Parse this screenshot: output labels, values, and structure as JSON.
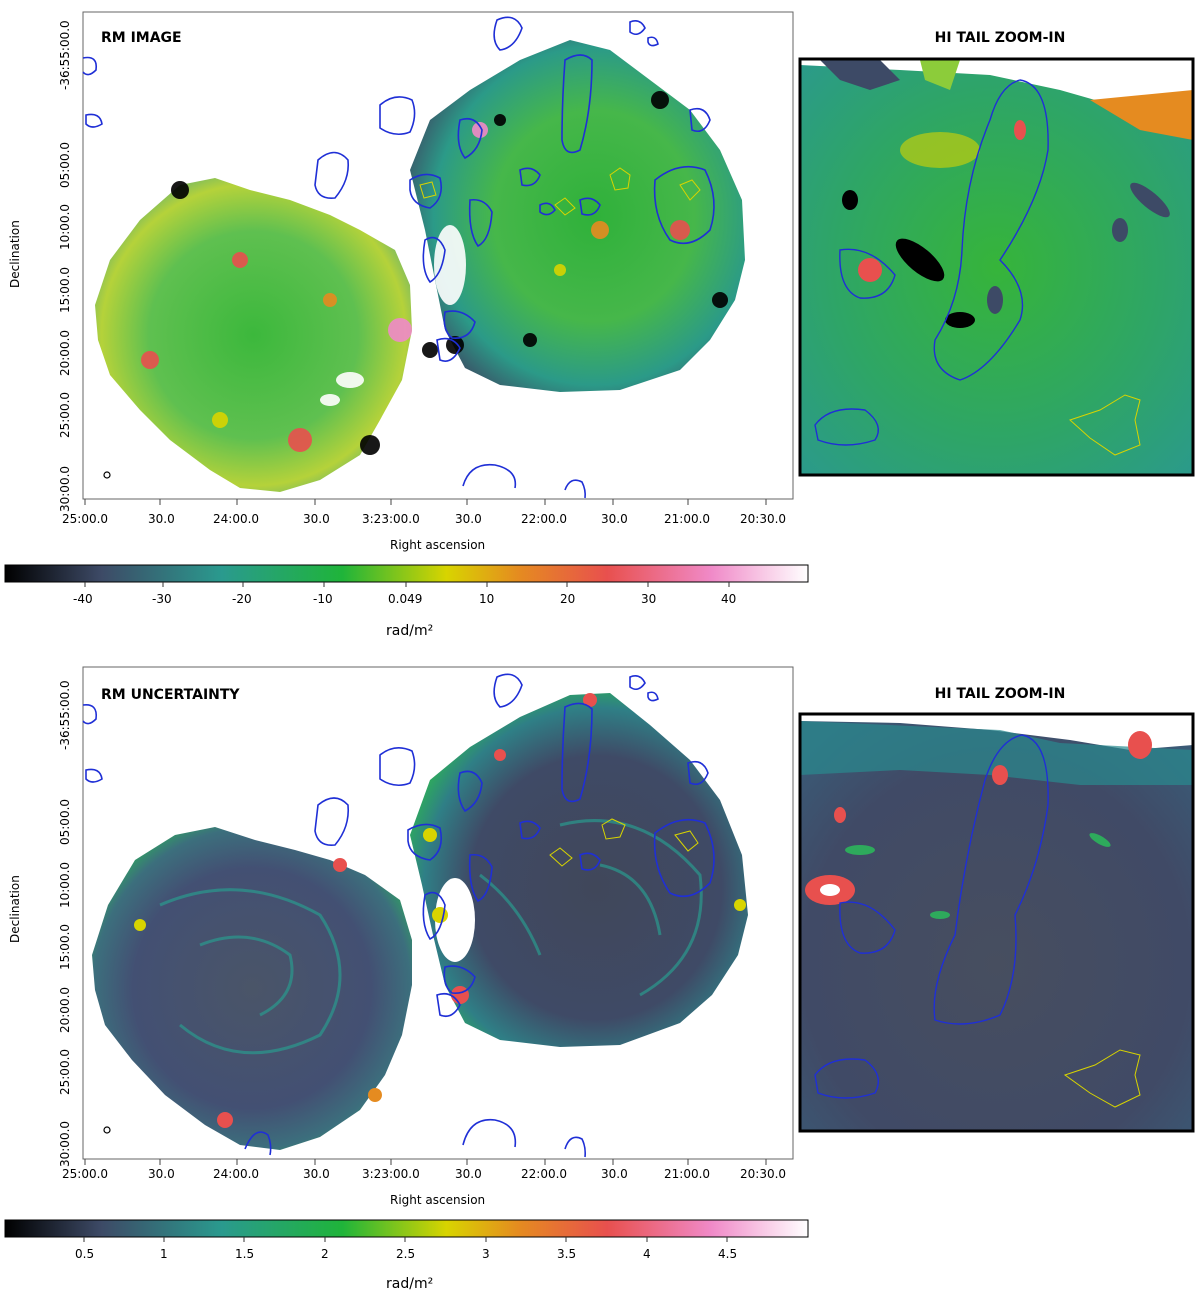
{
  "panels": [
    {
      "label": "RM IMAGE",
      "xlabel": "Right ascension",
      "ylabel": "Declination",
      "xticks": [
        "25:00.0",
        "30.0",
        "24:00.0",
        "30.0",
        "3:23:00.0",
        "30.0",
        "22:00.0",
        "30.0",
        "21:00.0",
        "20:30.0"
      ],
      "yticks": [
        "-36:55:00.0",
        "05:00.0",
        "10:00.0",
        "15:00.0",
        "20:00.0",
        "25:00.0",
        "30:00.0"
      ],
      "inset_title": "HI TAIL ZOOM-IN",
      "colorbar": {
        "ticks": [
          "-40",
          "-30",
          "-20",
          "-10",
          "0.049",
          "10",
          "20",
          "30",
          "40"
        ],
        "unit": "rad/m²",
        "colormap": [
          "#000000",
          "#3d4a66",
          "#2a9a8e",
          "#1fb43a",
          "#d8d400",
          "#e58b20",
          "#e8504e",
          "#f08ac8",
          "#ffffff"
        ]
      }
    },
    {
      "label": "RM UNCERTAINTY",
      "xlabel": "Right ascension",
      "ylabel": "Declination",
      "xticks": [
        "25:00.0",
        "30.0",
        "24:00.0",
        "30.0",
        "3:23:00.0",
        "30.0",
        "22:00.0",
        "30.0",
        "21:00.0",
        "20:30.0"
      ],
      "yticks": [
        "-36:55:00.0",
        "05:00.0",
        "10:00.0",
        "15:00.0",
        "20:00.0",
        "25:00.0",
        "30:00.0"
      ],
      "inset_title": "HI TAIL ZOOM-IN",
      "colorbar": {
        "ticks": [
          "0.5",
          "1",
          "1.5",
          "2",
          "2.5",
          "3",
          "3.5",
          "4",
          "4.5"
        ],
        "unit": "rad/m²",
        "colormap": [
          "#000000",
          "#3d4a66",
          "#2a9a8e",
          "#1fb43a",
          "#d8d400",
          "#e58b20",
          "#e8504e",
          "#f08ac8",
          "#ffffff"
        ]
      }
    }
  ],
  "contour_colors": {
    "hi": "#1f2fd6",
    "other": "#d8d400"
  }
}
